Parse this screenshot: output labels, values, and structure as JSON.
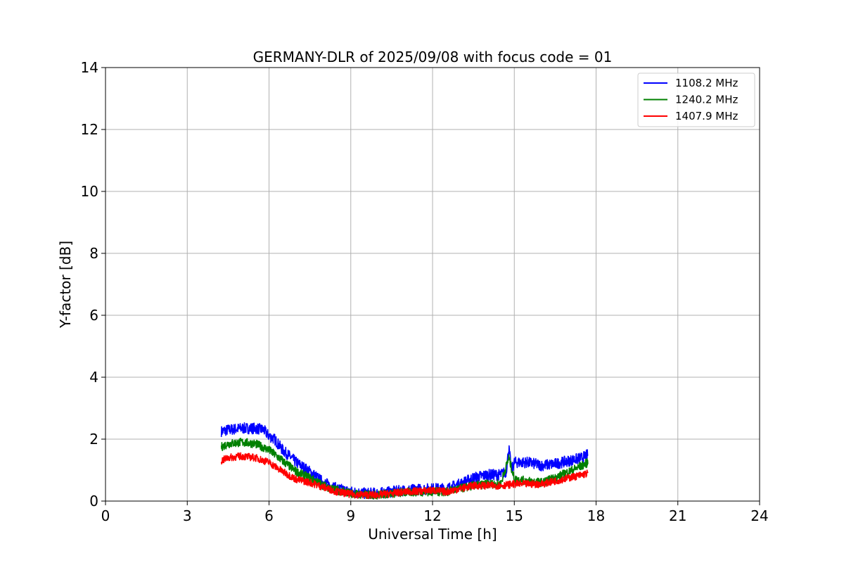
{
  "chart_data": {
    "type": "line",
    "title": "GERMANY-DLR of 2025/09/08 with focus code = 01",
    "xlabel": "Universal Time [h]",
    "ylabel": "Y-factor [dB]",
    "xlim": [
      0,
      24
    ],
    "ylim": [
      0,
      14
    ],
    "xticks": [
      "0",
      "3",
      "6",
      "9",
      "12",
      "15",
      "18",
      "21",
      "24"
    ],
    "yticks": [
      "0",
      "2",
      "4",
      "6",
      "8",
      "10",
      "12",
      "14"
    ],
    "grid": true,
    "legend_position": "top-right",
    "series": [
      {
        "name": "1108.2 MHz",
        "color": "#0000ff",
        "x": [
          4.25,
          4.5,
          5.0,
          5.5,
          5.8,
          6.0,
          6.2,
          6.5,
          7.0,
          7.5,
          8.0,
          8.5,
          9.0,
          9.5,
          10.0,
          10.5,
          11.0,
          11.5,
          12.0,
          12.5,
          13.0,
          13.5,
          14.0,
          14.5,
          14.7,
          14.8,
          14.9,
          15.0,
          15.5,
          16.0,
          16.5,
          17.0,
          17.5,
          17.7
        ],
        "y": [
          2.25,
          2.3,
          2.35,
          2.35,
          2.3,
          2.1,
          2.0,
          1.65,
          1.25,
          0.95,
          0.6,
          0.4,
          0.3,
          0.25,
          0.25,
          0.3,
          0.35,
          0.38,
          0.4,
          0.4,
          0.55,
          0.75,
          0.85,
          0.85,
          0.95,
          1.7,
          1.0,
          1.25,
          1.25,
          1.15,
          1.2,
          1.3,
          1.4,
          1.5
        ]
      },
      {
        "name": "1240.2 MHz",
        "color": "#008000",
        "x": [
          4.25,
          4.5,
          5.0,
          5.5,
          6.0,
          6.5,
          7.0,
          7.5,
          8.0,
          8.5,
          9.0,
          9.5,
          10.0,
          10.5,
          11.0,
          11.5,
          12.0,
          12.5,
          13.0,
          13.5,
          14.0,
          14.5,
          14.8,
          15.0,
          15.5,
          16.0,
          16.5,
          17.0,
          17.5,
          17.7
        ],
        "y": [
          1.75,
          1.85,
          1.9,
          1.85,
          1.65,
          1.3,
          0.95,
          0.75,
          0.5,
          0.35,
          0.25,
          0.2,
          0.2,
          0.25,
          0.28,
          0.3,
          0.3,
          0.3,
          0.4,
          0.5,
          0.55,
          0.55,
          1.4,
          0.7,
          0.65,
          0.6,
          0.75,
          0.95,
          1.15,
          1.25
        ]
      },
      {
        "name": "1407.9 MHz",
        "color": "#ff0000",
        "x": [
          4.25,
          4.5,
          5.0,
          5.5,
          6.0,
          6.5,
          7.0,
          7.5,
          8.0,
          8.5,
          9.0,
          9.5,
          10.0,
          10.5,
          11.0,
          11.5,
          12.0,
          12.5,
          13.0,
          13.5,
          14.0,
          14.5,
          15.0,
          15.5,
          16.0,
          16.5,
          17.0,
          17.5,
          17.7
        ],
        "y": [
          1.3,
          1.4,
          1.45,
          1.4,
          1.25,
          0.95,
          0.7,
          0.6,
          0.45,
          0.3,
          0.22,
          0.2,
          0.2,
          0.25,
          0.3,
          0.32,
          0.35,
          0.3,
          0.4,
          0.5,
          0.5,
          0.5,
          0.55,
          0.55,
          0.55,
          0.65,
          0.75,
          0.85,
          0.9
        ]
      }
    ]
  }
}
